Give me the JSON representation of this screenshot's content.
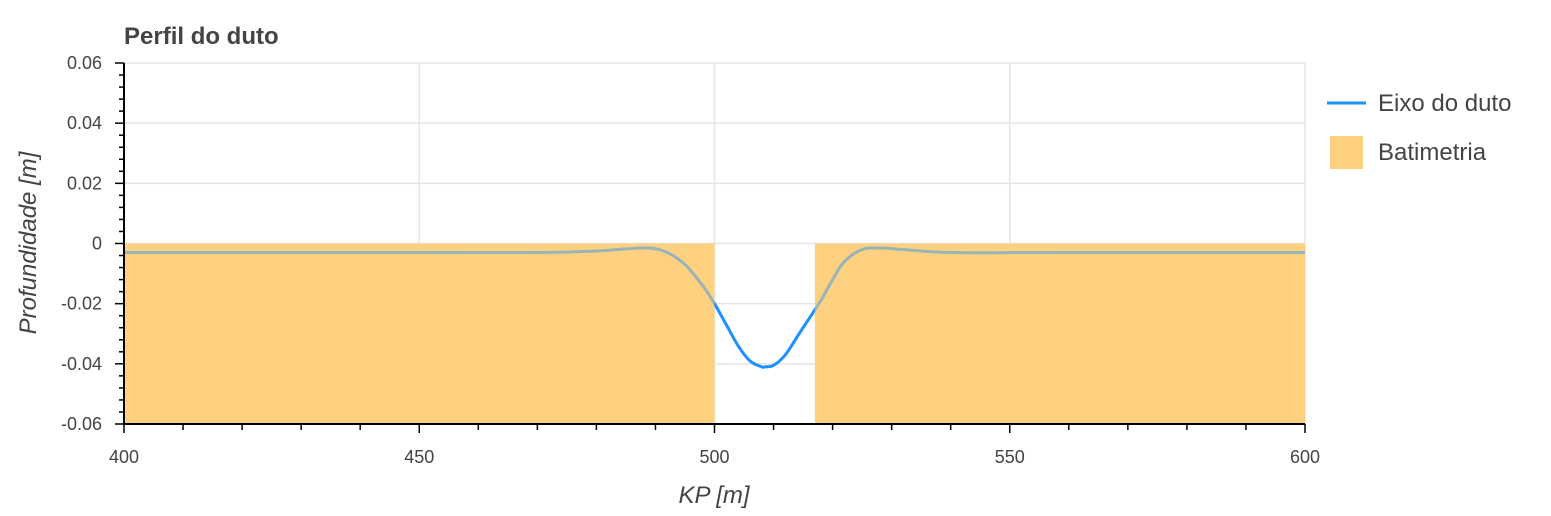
{
  "chart_data": {
    "type": "area",
    "title": "Perfil do duto",
    "xlabel": "KP [m]",
    "ylabel": "Profundidade [m]",
    "xlim": [
      400,
      600
    ],
    "ylim": [
      -0.06,
      0.06
    ],
    "x_ticks": [
      400,
      450,
      500,
      550,
      600
    ],
    "x_tick_labels": [
      "400",
      "450",
      "500",
      "550",
      "600"
    ],
    "y_ticks": [
      0.06,
      0.04,
      0.02,
      0,
      -0.02,
      -0.04,
      -0.06
    ],
    "y_tick_labels": [
      "0.06",
      "0.04",
      "0.02",
      "0",
      "-0.02",
      "-0.04",
      "-0.06"
    ],
    "grid": true,
    "legend_position": "right",
    "series": [
      {
        "name": "Eixo do duto",
        "type": "line",
        "color": "#1e90ff",
        "x": [
          400,
          450,
          470,
          480,
          485,
          489,
          492,
          495,
          498,
          500,
          502,
          504,
          506,
          508,
          508.5,
          510,
          512,
          514,
          516,
          518,
          520,
          522,
          525,
          528,
          532,
          540,
          560,
          600
        ],
        "y": [
          -0.003,
          -0.003,
          -0.003,
          -0.0025,
          -0.0018,
          -0.0015,
          -0.003,
          -0.007,
          -0.014,
          -0.02,
          -0.027,
          -0.034,
          -0.039,
          -0.041,
          -0.041,
          -0.0405,
          -0.037,
          -0.031,
          -0.025,
          -0.019,
          -0.012,
          -0.006,
          -0.002,
          -0.0015,
          -0.002,
          -0.003,
          -0.003,
          -0.003
        ]
      },
      {
        "name": "Batimetria",
        "type": "area",
        "color": "#fdd17f",
        "segments": [
          {
            "x_start": 400,
            "x_end": 500,
            "top": 0
          },
          {
            "x_start": 517,
            "x_end": 600,
            "top": 0
          }
        ]
      }
    ]
  }
}
